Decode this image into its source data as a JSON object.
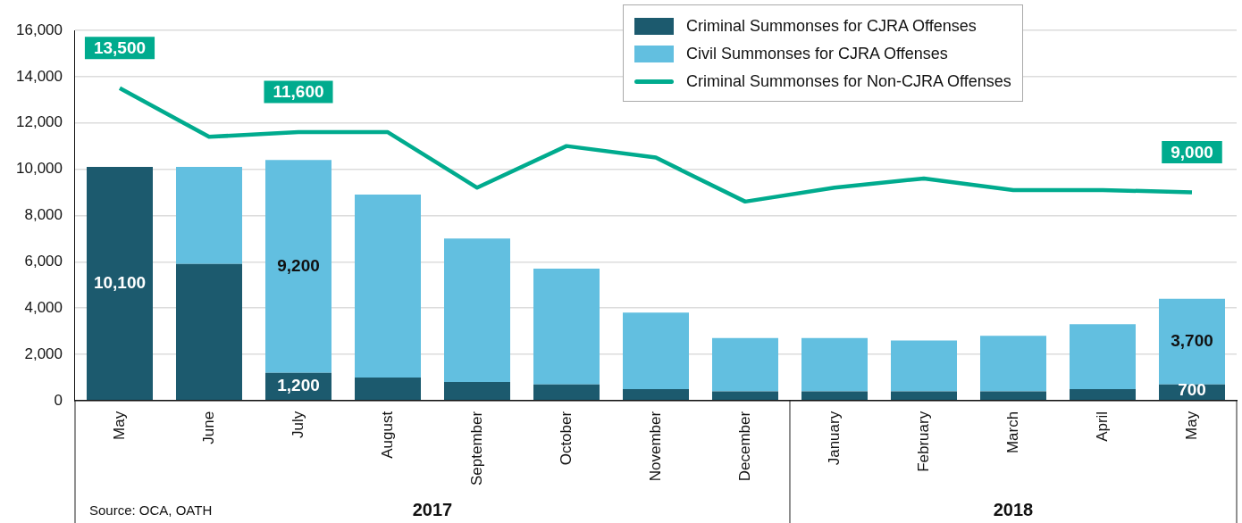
{
  "chart_data": {
    "type": "bar",
    "stacked": true,
    "grid": "y",
    "legend": "top right",
    "categories": [
      "May",
      "June",
      "July",
      "August",
      "September",
      "October",
      "November",
      "December",
      "January",
      "February",
      "March",
      "April",
      "May"
    ],
    "ylim": [
      0,
      16000
    ],
    "yticks": [
      0,
      {
        "value": 2000,
        "label": "2,000"
      },
      {
        "value": 4000,
        "label": "4,000"
      },
      {
        "value": 6000,
        "label": "6,000"
      },
      {
        "value": 8000,
        "label": "8,000"
      },
      {
        "value": 10000,
        "label": "10,000"
      },
      {
        "value": 12000,
        "label": "12,000"
      },
      {
        "value": 14000,
        "label": "14,000"
      },
      {
        "value": 16000,
        "label": "16,000"
      }
    ],
    "series": [
      {
        "name": "Criminal Summonses for CJRA Offenses",
        "color": "#1c5a6e",
        "values": [
          10100,
          5900,
          1200,
          1000,
          800,
          700,
          500,
          400,
          400,
          400,
          400,
          500,
          700
        ],
        "value_labels": [
          "10,100",
          null,
          "1,200",
          null,
          null,
          null,
          null,
          null,
          null,
          null,
          null,
          null,
          "700"
        ]
      },
      {
        "name": "Civil Summonses for CJRA Offenses",
        "color": "#62bfe0",
        "values": [
          0,
          4200,
          9200,
          7900,
          6200,
          5000,
          3300,
          2300,
          2300,
          2200,
          2400,
          2800,
          3700
        ],
        "value_labels": [
          null,
          null,
          "9,200",
          null,
          null,
          null,
          null,
          null,
          null,
          null,
          null,
          null,
          "3,700"
        ]
      },
      {
        "name": "Criminal Summonses for Non-CJRA Offenses",
        "type": "line",
        "color": "#00ab8e",
        "values": [
          13500,
          11400,
          11600,
          11600,
          9200,
          11000,
          10500,
          8600,
          9200,
          9600,
          9100,
          9100,
          9000
        ],
        "value_labels": [
          "13,500",
          null,
          "11,600",
          null,
          null,
          null,
          null,
          null,
          null,
          null,
          null,
          null,
          "9,000"
        ]
      }
    ],
    "annotations": [
      "2017",
      "2018",
      "Source: OCA, OATH"
    ]
  }
}
